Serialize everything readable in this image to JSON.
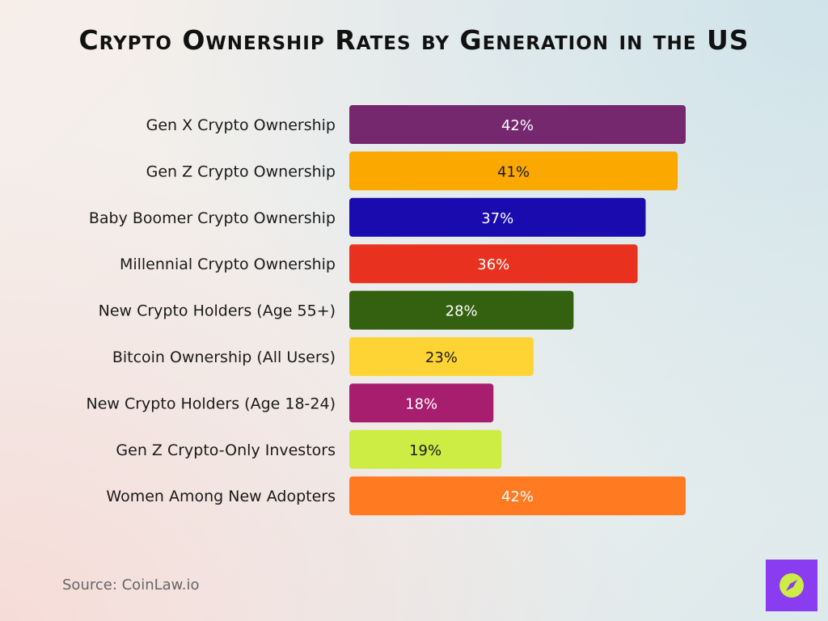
{
  "chart_data": {
    "type": "bar",
    "orientation": "horizontal",
    "title": "Crypto Ownership Rates by Generation in the US",
    "categories": [
      "Gen X Crypto Ownership",
      "Gen Z Crypto Ownership",
      "Baby Boomer Crypto Ownership",
      "Millennial Crypto Ownership",
      "New Crypto Holders (Age 55+)",
      "Bitcoin Ownership (All Users)",
      "New Crypto Holders (Age 18-24)",
      "Gen Z Crypto-Only Investors",
      "Women Among New Adopters"
    ],
    "values": [
      42,
      41,
      37,
      36,
      28,
      23,
      18,
      19,
      42
    ],
    "value_labels": [
      "42%",
      "41%",
      "37%",
      "36%",
      "28%",
      "23%",
      "18%",
      "19%",
      "42%"
    ],
    "colors": [
      "#75286e",
      "#fba800",
      "#1a0baf",
      "#e8321f",
      "#33610f",
      "#fed435",
      "#a71e6e",
      "#cdec44",
      "#ff7a21"
    ],
    "label_colors": [
      "#ffffff",
      "#1a1a1a",
      "#ffffff",
      "#ffffff",
      "#ffffff",
      "#1a1a1a",
      "#ffffff",
      "#1a1a1a",
      "#ffffff"
    ],
    "xlim": [
      0,
      42
    ],
    "grid": false,
    "legend": "none"
  },
  "source": "Source: CoinLaw.io",
  "logo": {
    "icon": "compass-icon",
    "bg_color": "#8a3cf0",
    "fg_color": "#cdec44"
  }
}
